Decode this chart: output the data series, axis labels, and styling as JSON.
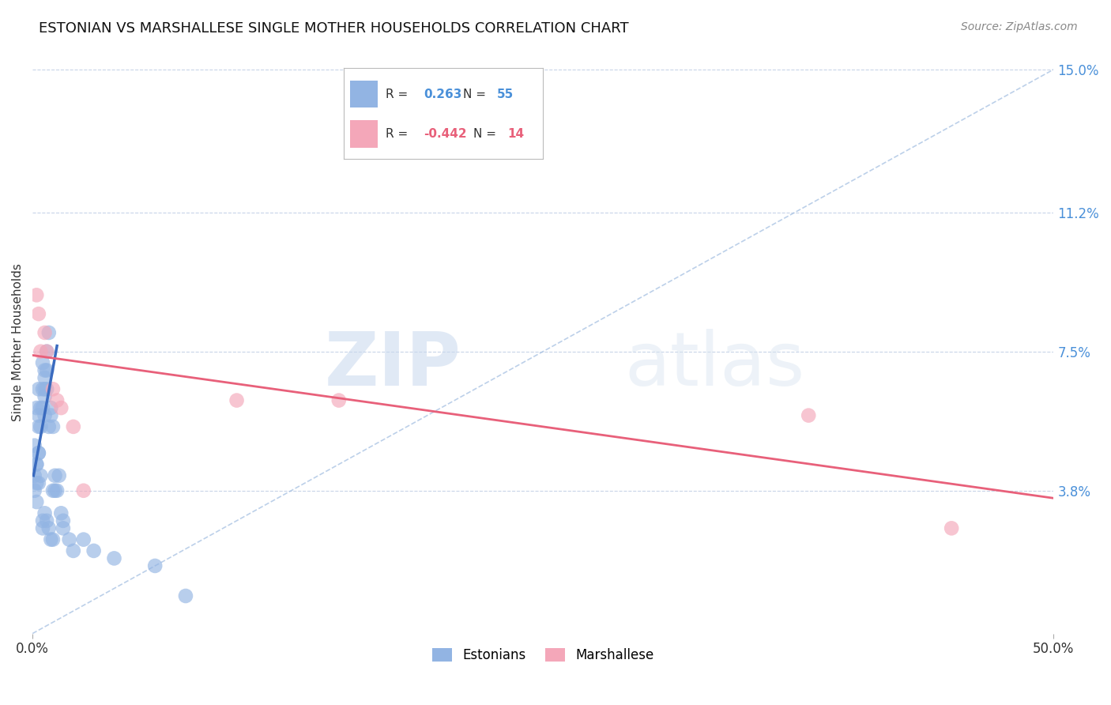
{
  "title": "ESTONIAN VS MARSHALLESE SINGLE MOTHER HOUSEHOLDS CORRELATION CHART",
  "source": "Source: ZipAtlas.com",
  "ylabel": "Single Mother Households",
  "xlim": [
    0.0,
    0.5
  ],
  "ylim": [
    0.0,
    0.155
  ],
  "xtick_positions": [
    0.0,
    0.5
  ],
  "xtick_labels": [
    "0.0%",
    "50.0%"
  ],
  "ytick_labels": [
    "3.8%",
    "7.5%",
    "11.2%",
    "15.0%"
  ],
  "ytick_values": [
    0.038,
    0.075,
    0.112,
    0.15
  ],
  "estonian_color": "#92b4e3",
  "marshallese_color": "#f4a7b9",
  "estonian_line_color": "#3a6bbf",
  "marshallese_line_color": "#e8607a",
  "dashed_line_color": "#a0bce0",
  "watermark_zip": "ZIP",
  "watermark_atlas": "atlas",
  "background_color": "#ffffff",
  "grid_color": "#c8d4e8",
  "estonian_x": [
    0.001,
    0.002,
    0.002,
    0.003,
    0.003,
    0.003,
    0.003,
    0.004,
    0.004,
    0.005,
    0.005,
    0.005,
    0.006,
    0.006,
    0.006,
    0.006,
    0.006,
    0.007,
    0.007,
    0.007,
    0.008,
    0.008,
    0.009,
    0.009,
    0.01,
    0.01,
    0.011,
    0.011,
    0.012,
    0.013,
    0.014,
    0.015,
    0.001,
    0.001,
    0.002,
    0.002,
    0.002,
    0.003,
    0.003,
    0.004,
    0.005,
    0.005,
    0.006,
    0.007,
    0.008,
    0.009,
    0.01,
    0.015,
    0.018,
    0.02,
    0.025,
    0.03,
    0.04,
    0.06,
    0.075
  ],
  "estonian_y": [
    0.05,
    0.06,
    0.045,
    0.055,
    0.065,
    0.058,
    0.048,
    0.06,
    0.055,
    0.065,
    0.072,
    0.06,
    0.065,
    0.07,
    0.068,
    0.058,
    0.063,
    0.075,
    0.07,
    0.065,
    0.08,
    0.055,
    0.058,
    0.06,
    0.055,
    0.038,
    0.042,
    0.038,
    0.038,
    0.042,
    0.032,
    0.028,
    0.042,
    0.038,
    0.04,
    0.035,
    0.045,
    0.04,
    0.048,
    0.042,
    0.03,
    0.028,
    0.032,
    0.03,
    0.028,
    0.025,
    0.025,
    0.03,
    0.025,
    0.022,
    0.025,
    0.022,
    0.02,
    0.018,
    0.01
  ],
  "marshallese_x": [
    0.002,
    0.003,
    0.004,
    0.006,
    0.007,
    0.01,
    0.012,
    0.014,
    0.02,
    0.025,
    0.1,
    0.15,
    0.38,
    0.45
  ],
  "marshallese_y": [
    0.09,
    0.085,
    0.075,
    0.08,
    0.075,
    0.065,
    0.062,
    0.06,
    0.055,
    0.038,
    0.062,
    0.062,
    0.058,
    0.028
  ],
  "estonian_line_x": [
    0.0005,
    0.012
  ],
  "estonian_line_y_intercept": 0.042,
  "estonian_line_slope": 3.0,
  "marshallese_line_x": [
    0.0,
    0.5
  ],
  "marshallese_line_y_start": 0.074,
  "marshallese_line_y_end": 0.036,
  "dashed_line_x": [
    0.0,
    0.5
  ],
  "dashed_line_y": [
    0.0,
    0.15
  ]
}
